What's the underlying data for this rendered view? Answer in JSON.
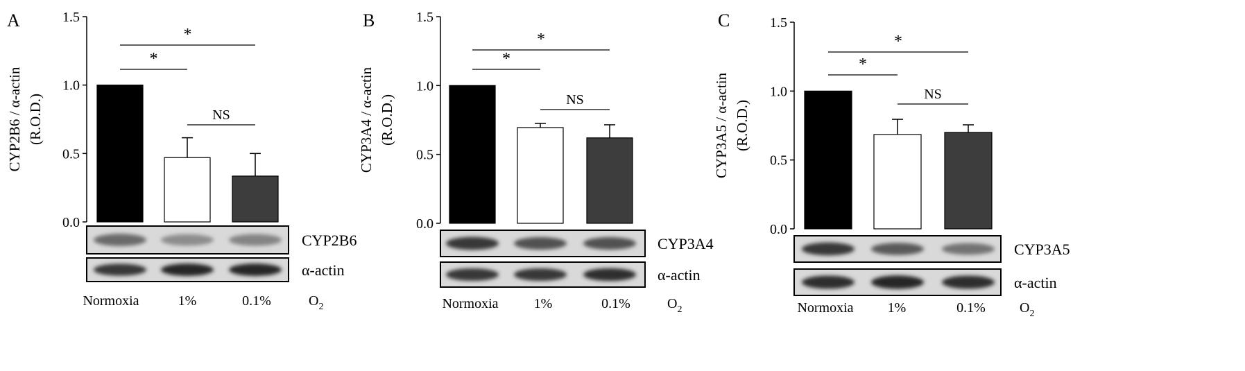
{
  "figure": {
    "o2_label": "O",
    "o2_subscript": "2",
    "conditions": [
      "Normoxia",
      "1%",
      "0.1%"
    ],
    "colors": {
      "normoxia": "#000000",
      "one_percent": "#ffffff",
      "point_one_percent": "#3d3d3d"
    }
  },
  "chart_data": [
    {
      "type": "bar",
      "panel_letter": "A",
      "categories": [
        "Normoxia",
        "1%",
        "0.1%"
      ],
      "series": [
        {
          "values": [
            1.0,
            0.47,
            0.335
          ],
          "errors": [
            0,
            0.145,
            0.165
          ]
        }
      ],
      "ylabel": "CYP2B6 / α-actin",
      "ylabel_units": "(R.O.D.)",
      "ylim": [
        0,
        1.5
      ],
      "yticks": [
        "0.0",
        "0.5",
        "1.0",
        "1.5"
      ],
      "significance": [
        {
          "from": 0,
          "to": 1,
          "label": "*"
        },
        {
          "from": 0,
          "to": 2,
          "label": "*"
        },
        {
          "from": 1,
          "to": 2,
          "label": "NS"
        }
      ],
      "blots": [
        {
          "label": "CYP2B6",
          "intensity": [
            0.55,
            0.35,
            0.4
          ]
        },
        {
          "label": "α-actin",
          "intensity": [
            0.85,
            0.95,
            0.95
          ]
        }
      ]
    },
    {
      "type": "bar",
      "panel_letter": "B",
      "categories": [
        "Normoxia",
        "1%",
        "0.1%"
      ],
      "series": [
        {
          "values": [
            1.0,
            0.695,
            0.62
          ],
          "errors": [
            0,
            0.03,
            0.095
          ]
        }
      ],
      "ylabel": "CYP3A4 / α-actin",
      "ylabel_units": "(R.O.D.)",
      "ylim": [
        0,
        1.5
      ],
      "yticks": [
        "0.0",
        "0.5",
        "1.0",
        "1.5"
      ],
      "significance": [
        {
          "from": 0,
          "to": 1,
          "label": "*"
        },
        {
          "from": 0,
          "to": 2,
          "label": "*"
        },
        {
          "from": 1,
          "to": 2,
          "label": "NS"
        }
      ],
      "blots": [
        {
          "label": "CYP3A4",
          "intensity": [
            0.85,
            0.7,
            0.7
          ]
        },
        {
          "label": "α-actin",
          "intensity": [
            0.85,
            0.85,
            0.9
          ]
        }
      ]
    },
    {
      "type": "bar",
      "panel_letter": "C",
      "categories": [
        "Normoxia",
        "1%",
        "0.1%"
      ],
      "series": [
        {
          "values": [
            1.0,
            0.685,
            0.7
          ],
          "errors": [
            0,
            0.11,
            0.055
          ]
        }
      ],
      "ylabel": "CYP3A5 / α-actin",
      "ylabel_units": "(R.O.D.)",
      "ylim": [
        0,
        1.5
      ],
      "yticks": [
        "0.0",
        "0.5",
        "1.0",
        "1.5"
      ],
      "significance": [
        {
          "from": 0,
          "to": 1,
          "label": "*"
        },
        {
          "from": 0,
          "to": 2,
          "label": "*"
        },
        {
          "from": 1,
          "to": 2,
          "label": "NS"
        }
      ],
      "blots": [
        {
          "label": "CYP3A5",
          "intensity": [
            0.85,
            0.65,
            0.5
          ]
        },
        {
          "label": "α-actin",
          "intensity": [
            0.9,
            0.95,
            0.9
          ]
        }
      ]
    }
  ]
}
